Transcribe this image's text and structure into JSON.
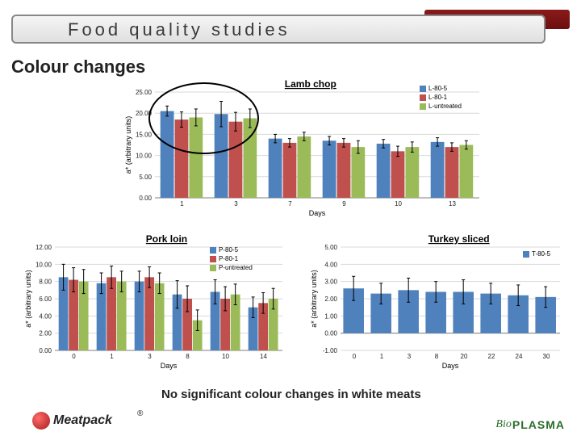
{
  "header": {
    "title": "Food quality studies"
  },
  "section": {
    "heading": "Colour changes"
  },
  "conclusion": "No significant colour changes in white meats",
  "logos": {
    "left": "Meatpack",
    "right_prefix": "Bio",
    "right_main": "PLASMA"
  },
  "charts": {
    "lamb": {
      "title": "Lamb chop",
      "ylabel": "a* (arbitrary units)",
      "xlabel": "Days",
      "xvals": [
        1,
        3,
        7,
        9,
        10,
        13
      ],
      "ylim": [
        0,
        25
      ],
      "ytick_step": 5,
      "series": [
        {
          "name": "L-80-5",
          "color": "#4f81bd",
          "vals": [
            20.5,
            19.8,
            14.0,
            13.5,
            12.8,
            13.2
          ],
          "err": [
            1.2,
            3.0,
            1.0,
            1.0,
            1.0,
            1.0
          ]
        },
        {
          "name": "L-80-1",
          "color": "#c0504d",
          "vals": [
            18.5,
            18.0,
            13.0,
            13.0,
            11.0,
            12.0
          ],
          "err": [
            1.8,
            2.2,
            1.0,
            1.0,
            1.2,
            1.0
          ]
        },
        {
          "name": "L-untreated",
          "color": "#9bbb59",
          "vals": [
            19.0,
            18.8,
            14.5,
            12.0,
            12.0,
            12.5
          ],
          "err": [
            2.0,
            2.2,
            1.0,
            1.5,
            1.2,
            1.0
          ]
        }
      ],
      "ellipse": {
        "cx_rel": 0.15,
        "cy_rel": 0.25,
        "rx_rel": 0.17,
        "ry_rel": 0.34
      }
    },
    "pork": {
      "title": "Pork loin",
      "ylabel": "a* (arbitrary units)",
      "xlabel": "Days",
      "xvals": [
        0,
        1,
        3,
        8,
        10,
        14
      ],
      "ylim": [
        0,
        12
      ],
      "ytick_step": 2,
      "series": [
        {
          "name": "P-80-5",
          "color": "#4f81bd",
          "vals": [
            8.5,
            7.8,
            8.0,
            6.5,
            6.8,
            5.0
          ],
          "err": [
            1.5,
            1.2,
            1.2,
            1.6,
            1.4,
            1.2
          ]
        },
        {
          "name": "P-80-1",
          "color": "#c0504d",
          "vals": [
            8.2,
            8.5,
            8.5,
            6.0,
            6.0,
            5.5
          ],
          "err": [
            1.4,
            1.3,
            1.2,
            1.5,
            1.4,
            1.2
          ]
        },
        {
          "name": "P-untreated",
          "color": "#9bbb59",
          "vals": [
            8.0,
            8.0,
            7.8,
            3.5,
            6.5,
            6.0
          ],
          "err": [
            1.4,
            1.2,
            1.2,
            1.2,
            1.2,
            1.2
          ]
        }
      ]
    },
    "turkey": {
      "title": "Turkey sliced",
      "ylabel": "a* (arbitrary units)",
      "xlabel": "Days",
      "xvals": [
        0,
        1,
        3,
        8,
        20,
        22,
        24,
        30
      ],
      "ylim": [
        -1,
        5
      ],
      "yticks": [
        -1,
        0,
        1,
        2,
        3,
        4,
        5
      ],
      "series": [
        {
          "name": "T-80-5",
          "color": "#4f81bd",
          "vals": [
            2.6,
            2.3,
            2.5,
            2.4,
            2.4,
            2.3,
            2.2,
            2.1
          ],
          "err": [
            0.7,
            0.6,
            0.7,
            0.6,
            0.7,
            0.6,
            0.6,
            0.6
          ]
        }
      ]
    }
  },
  "chart_style": {
    "grid_color": "#d9d9d9",
    "axis_color": "#7f7f7f",
    "bar_group_gap": 0.2,
    "error_cap": 4,
    "font_size_title": 12,
    "font_size_axis": 9,
    "font_size_tick": 8
  }
}
